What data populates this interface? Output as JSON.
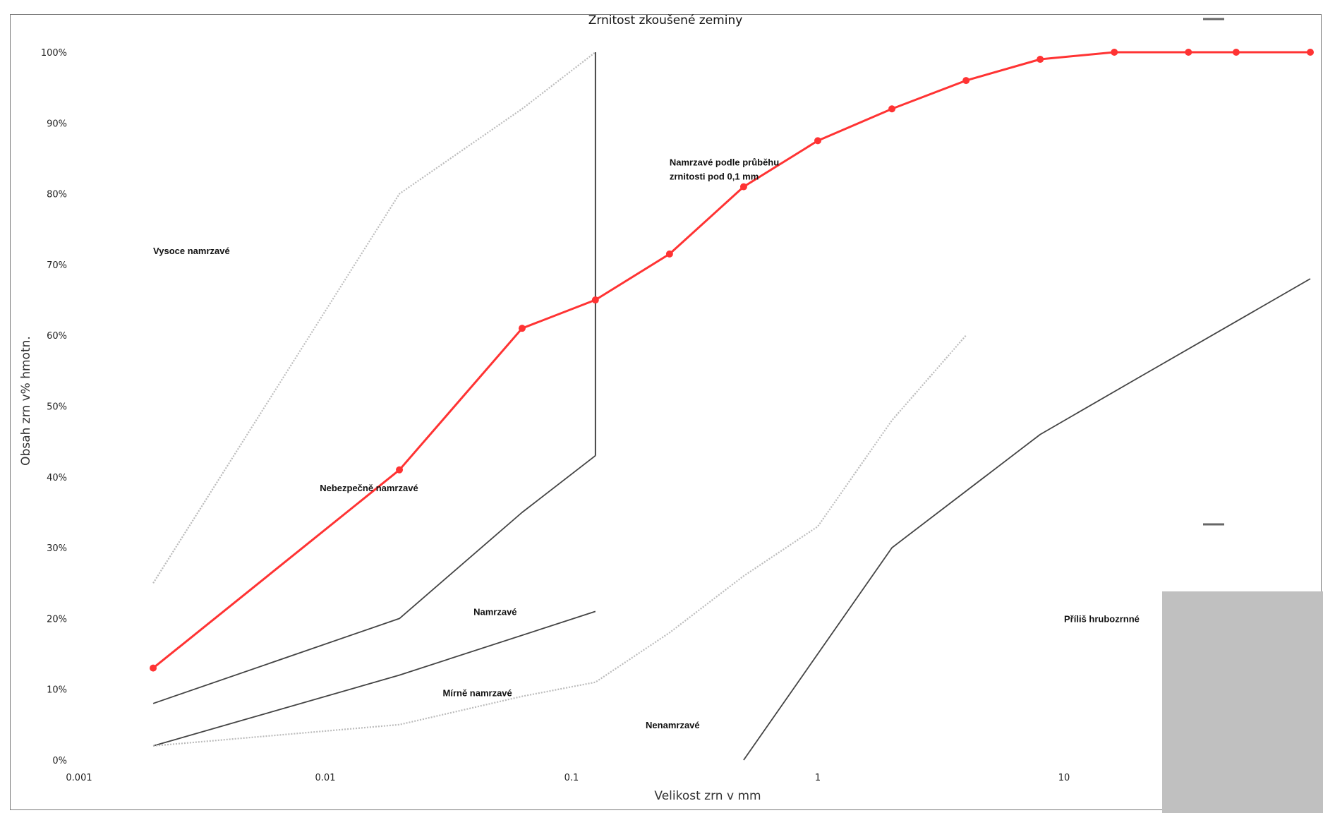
{
  "chart_data": {
    "type": "line",
    "title": "Zrnitost zkoušené zeminy",
    "xlabel": "Velikost zrn v mm",
    "ylabel": "Obsah zrn v% hmotn.",
    "x_scale": "log",
    "xlim": [
      0.001,
      100
    ],
    "ylim": [
      0,
      100
    ],
    "x_ticks": [
      "0.001",
      "0.01",
      "0.1",
      "1",
      "10"
    ],
    "y_ticks": [
      "0%",
      "10%",
      "20%",
      "30%",
      "40%",
      "50%",
      "60%",
      "70%",
      "80%",
      "90%",
      "100%"
    ],
    "grid": false,
    "series": [
      {
        "name": "",
        "role": "sample",
        "color": "#ff3333",
        "style": "solid",
        "markers": true,
        "x": [
          0.002,
          0.02,
          0.063,
          0.125,
          0.25,
          0.5,
          1,
          2,
          4,
          8,
          16,
          32,
          50,
          100
        ],
        "y": [
          13,
          41,
          61,
          65,
          71.5,
          81,
          87.5,
          92,
          96,
          99,
          100,
          100,
          100,
          100
        ]
      },
      {
        "name": "",
        "role": "boundary",
        "color": "#bbbbbb",
        "style": "dotted",
        "markers": false,
        "x": [
          0.002,
          0.02,
          0.063,
          0.125
        ],
        "y": [
          25,
          80,
          92,
          100
        ]
      },
      {
        "name": "",
        "role": "boundary",
        "color": "#444444",
        "style": "solid",
        "markers": false,
        "x": [
          0.002,
          0.02,
          0.063,
          0.125
        ],
        "y": [
          8,
          20,
          35,
          43
        ]
      },
      {
        "name": "",
        "role": "boundary",
        "color": "#444444",
        "style": "solid",
        "markers": false,
        "x": [
          0.002,
          0.02,
          0.125
        ],
        "y": [
          2,
          12,
          21
        ]
      },
      {
        "name": "",
        "role": "boundary",
        "color": "#bbbbbb",
        "style": "dotted",
        "markers": false,
        "x": [
          0.002,
          0.02,
          0.063,
          0.125,
          0.25,
          0.5,
          1,
          2,
          4
        ],
        "y": [
          2,
          5,
          9,
          11,
          18,
          26,
          33,
          48,
          60
        ]
      },
      {
        "name": "",
        "role": "boundary",
        "color": "#444444",
        "style": "solid",
        "markers": false,
        "x": [
          0.5,
          2,
          8,
          20,
          100
        ],
        "y": [
          0,
          30,
          46,
          54,
          68
        ]
      },
      {
        "name": "",
        "role": "boundary",
        "color": "#333333",
        "style": "solid",
        "markers": false,
        "x": [
          0.125,
          0.125
        ],
        "y": [
          43,
          100
        ]
      }
    ],
    "annotations": [
      {
        "text": "Vysoce namrzavé",
        "x": 0.002,
        "y": 71.5
      },
      {
        "text": "Namrzavé podle průběhu",
        "x": 0.25,
        "y": 84
      },
      {
        "text": "zrnitosti pod 0,1 mm",
        "x": 0.25,
        "y": 82
      },
      {
        "text": "Nebezpečně namrzavé",
        "x": 0.0095,
        "y": 38
      },
      {
        "text": "Namrzavé",
        "x": 0.04,
        "y": 20.5
      },
      {
        "text": "Mírně namrzavé",
        "x": 0.03,
        "y": 9
      },
      {
        "text": "Nenamrzavé",
        "x": 0.2,
        "y": 4.5
      },
      {
        "text": "Příliš hrubozrnné",
        "x": 10,
        "y": 19.5
      }
    ]
  }
}
